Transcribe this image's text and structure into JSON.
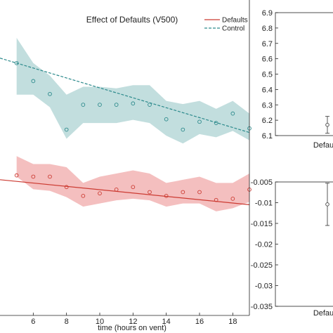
{
  "colors": {
    "defaults": "#cc3b32",
    "defaults_band": "#f4bfbf",
    "control": "#2c8a8c",
    "control_band": "#c2dede",
    "axis": "#222222",
    "errorbar": "#444444"
  },
  "chart_data": [
    {
      "type": "scatter",
      "title": "Effect of Defaults (V500)",
      "xlabel": "time (hours on vent)",
      "ylabel": "",
      "xlim": [
        4.0,
        19.0
      ],
      "ylim": [
        0.0,
        1.0
      ],
      "xticks": [
        6,
        8,
        10,
        12,
        14,
        16,
        18
      ],
      "xtick_labels": [
        "6",
        "8",
        "10",
        "12",
        "14",
        "16",
        "18"
      ],
      "legend": {
        "placement": "top-right",
        "entries": [
          "Defaults",
          "Control"
        ]
      },
      "series": [
        {
          "name": "Control",
          "style": "dashed-fit",
          "x": [
            5,
            6,
            7,
            8,
            9,
            10,
            11,
            12,
            13,
            14,
            15,
            16,
            17,
            18,
            19
          ],
          "y": [
            0.8,
            0.743,
            0.702,
            0.589,
            0.668,
            0.668,
            0.668,
            0.672,
            0.668,
            0.622,
            0.589,
            0.614,
            0.61,
            0.64,
            0.593
          ],
          "band_upper": [
            0.88,
            0.8,
            0.76,
            0.7,
            0.725,
            0.725,
            0.72,
            0.73,
            0.73,
            0.68,
            0.67,
            0.68,
            0.655,
            0.68,
            0.64
          ],
          "band_lower": [
            0.7,
            0.7,
            0.66,
            0.56,
            0.61,
            0.61,
            0.61,
            0.62,
            0.61,
            0.57,
            0.545,
            0.575,
            0.565,
            0.585,
            0.555
          ],
          "fit": [
            0.8,
            0.58
          ]
        },
        {
          "name": "Defaults",
          "style": "solid-fit",
          "x": [
            5,
            6,
            7,
            8,
            9,
            10,
            11,
            12,
            13,
            14,
            15,
            16,
            17,
            18,
            19
          ],
          "y": [
            0.444,
            0.44,
            0.44,
            0.407,
            0.379,
            0.387,
            0.399,
            0.407,
            0.391,
            0.379,
            0.391,
            0.391,
            0.366,
            0.37,
            0.399
          ],
          "band_upper": [
            0.505,
            0.48,
            0.48,
            0.47,
            0.42,
            0.44,
            0.45,
            0.46,
            0.45,
            0.42,
            0.43,
            0.44,
            0.42,
            0.42,
            0.45
          ],
          "band_lower": [
            0.44,
            0.4,
            0.395,
            0.375,
            0.345,
            0.355,
            0.365,
            0.37,
            0.365,
            0.345,
            0.355,
            0.355,
            0.33,
            0.34,
            0.36
          ],
          "fit": [
            0.425,
            0.351
          ]
        }
      ]
    },
    {
      "type": "scatter",
      "title": "",
      "xlabel": "",
      "ylabel": "",
      "xlim": [
        0,
        2
      ],
      "ylim": [
        6.1,
        6.9
      ],
      "yticks": [
        6.1,
        6.2,
        6.3,
        6.4,
        6.5,
        6.6,
        6.7,
        6.8,
        6.9
      ],
      "ytick_labels": [
        "6.1",
        "6.2",
        "6.3",
        "6.4",
        "6.5",
        "6.6",
        "6.7",
        "6.8",
        "6.9"
      ],
      "xtick_labels": [
        "Defaults"
      ],
      "points": [
        {
          "x": 1,
          "y": 6.17,
          "err_low": 6.115,
          "err_high": 6.225
        }
      ]
    },
    {
      "type": "scatter",
      "title": "",
      "xlabel": "",
      "ylabel": "",
      "xlim": [
        0,
        2
      ],
      "ylim": [
        -0.035,
        -0.005
      ],
      "yticks": [
        -0.005,
        -0.01,
        -0.015,
        -0.02,
        -0.025,
        -0.03,
        -0.035
      ],
      "ytick_labels": [
        "-0.005",
        "-0.01",
        "-0.015",
        "-0.02",
        "-0.025",
        "-0.03",
        "-0.035"
      ],
      "xtick_labels": [
        "Defaults"
      ],
      "points": [
        {
          "x": 1,
          "y": -0.0104,
          "err_low": -0.0155,
          "err_high": -0.0053
        }
      ]
    }
  ]
}
